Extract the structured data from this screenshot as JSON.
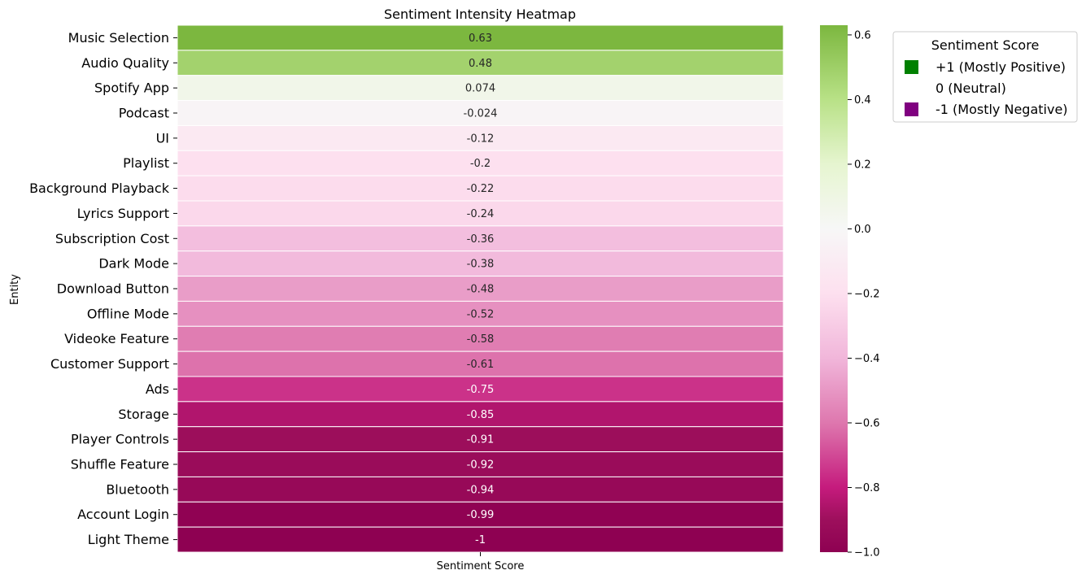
{
  "chart_data": {
    "type": "heatmap",
    "title": "Sentiment Intensity Heatmap",
    "xlabel": "",
    "ylabel": "Entity",
    "columns": [
      "Sentiment Score"
    ],
    "rows": [
      {
        "entity": "Music Selection",
        "value": 0.63,
        "label": "0.63"
      },
      {
        "entity": "Audio Quality",
        "value": 0.48,
        "label": "0.48"
      },
      {
        "entity": "Spotify App",
        "value": 0.074,
        "label": "0.074"
      },
      {
        "entity": "Podcast",
        "value": -0.024,
        "label": "-0.024"
      },
      {
        "entity": "UI",
        "value": -0.12,
        "label": "-0.12"
      },
      {
        "entity": "Playlist",
        "value": -0.2,
        "label": "-0.2"
      },
      {
        "entity": "Background Playback",
        "value": -0.22,
        "label": "-0.22"
      },
      {
        "entity": "Lyrics Support",
        "value": -0.24,
        "label": "-0.24"
      },
      {
        "entity": "Subscription Cost",
        "value": -0.36,
        "label": "-0.36"
      },
      {
        "entity": "Dark Mode",
        "value": -0.38,
        "label": "-0.38"
      },
      {
        "entity": "Download Button",
        "value": -0.48,
        "label": "-0.48"
      },
      {
        "entity": "Offline Mode",
        "value": -0.52,
        "label": "-0.52"
      },
      {
        "entity": "Videoke Feature",
        "value": -0.58,
        "label": "-0.58"
      },
      {
        "entity": "Customer Support",
        "value": -0.61,
        "label": "-0.61"
      },
      {
        "entity": "Ads",
        "value": -0.75,
        "label": "-0.75"
      },
      {
        "entity": "Storage",
        "value": -0.85,
        "label": "-0.85"
      },
      {
        "entity": "Player Controls",
        "value": -0.91,
        "label": "-0.91"
      },
      {
        "entity": "Shuffle Feature",
        "value": -0.92,
        "label": "-0.92"
      },
      {
        "entity": "Bluetooth",
        "value": -0.94,
        "label": "-0.94"
      },
      {
        "entity": "Account Login",
        "value": -0.99,
        "label": "-0.99"
      },
      {
        "entity": "Light Theme",
        "value": -1,
        "label": "-1"
      }
    ],
    "colorbar": {
      "colormap": "PiYG",
      "range": [
        -1.0,
        0.63
      ],
      "ticks": [
        {
          "value": 0.6,
          "label": "0.6"
        },
        {
          "value": 0.4,
          "label": "0.4"
        },
        {
          "value": 0.2,
          "label": "0.2"
        },
        {
          "value": 0.0,
          "label": "0.0"
        },
        {
          "value": -0.2,
          "label": "−0.2"
        },
        {
          "value": -0.4,
          "label": "−0.4"
        },
        {
          "value": -0.6,
          "label": "−0.6"
        },
        {
          "value": -0.8,
          "label": "−0.8"
        },
        {
          "value": -1.0,
          "label": "−1.0"
        }
      ]
    },
    "legend": {
      "title": "Sentiment Score",
      "placement": "outside-top-right",
      "entries": [
        {
          "label": "+1 (Mostly Positive)",
          "color": "#008000"
        },
        {
          "label": "0 (Neutral)",
          "color": "#ffffff"
        },
        {
          "label": "-1 (Mostly Negative)",
          "color": "#800080"
        }
      ]
    },
    "grid": false
  }
}
